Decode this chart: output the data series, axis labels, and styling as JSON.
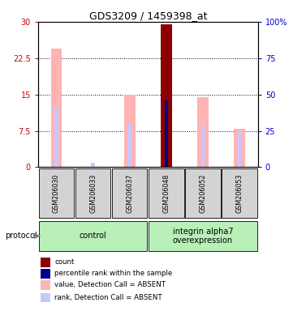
{
  "title": "GDS3209 / 1459398_at",
  "samples": [
    "GSM206030",
    "GSM206033",
    "GSM206037",
    "GSM206048",
    "GSM206052",
    "GSM206053"
  ],
  "ylim_left": [
    0,
    30
  ],
  "ylim_right": [
    0,
    100
  ],
  "yticks_left": [
    0,
    7.5,
    15,
    22.5,
    30
  ],
  "yticks_right": [
    0,
    25,
    50,
    75,
    100
  ],
  "ytick_labels_left": [
    "0",
    "7.5",
    "15",
    "22.5",
    "30"
  ],
  "ytick_labels_right": [
    "0",
    "25",
    "50",
    "75",
    "100%"
  ],
  "gridlines": [
    7.5,
    15.0,
    22.5
  ],
  "bar_data": [
    {
      "sample": "GSM206030",
      "value_bar": 24.5,
      "rank_bar": 41.5,
      "type": "absent"
    },
    {
      "sample": "GSM206033",
      "value_bar": null,
      "rank_bar": 3.0,
      "type": "absent"
    },
    {
      "sample": "GSM206037",
      "value_bar": 15.0,
      "rank_bar": 30.0,
      "type": "absent"
    },
    {
      "sample": "GSM206048",
      "value_bar": 29.5,
      "rank_bar": 46.0,
      "type": "present"
    },
    {
      "sample": "GSM206052",
      "value_bar": 14.5,
      "rank_bar": 28.5,
      "type": "absent"
    },
    {
      "sample": "GSM206053",
      "value_bar": 8.0,
      "rank_bar": 24.5,
      "type": "absent"
    }
  ],
  "groups": [
    {
      "name": "control",
      "start": 0,
      "end": 3,
      "color": "#b8f0b8"
    },
    {
      "name": "integrin alpha7\noverexpression",
      "start": 3,
      "end": 6,
      "color": "#b8f0b8"
    }
  ],
  "colors": {
    "count_bar": "#8b0000",
    "percentile_bar": "#00008b",
    "value_bar_absent": "#ffb3b3",
    "rank_bar_absent": "#c8c8ff",
    "sample_box": "#d3d3d3",
    "tick_left": "#cc0000",
    "tick_right": "#0000cc"
  },
  "legend": [
    {
      "label": "count",
      "color": "#8b0000"
    },
    {
      "label": "percentile rank within the sample",
      "color": "#00008b"
    },
    {
      "label": "value, Detection Call = ABSENT",
      "color": "#ffb3b3"
    },
    {
      "label": "rank, Detection Call = ABSENT",
      "color": "#c8c8ff"
    }
  ]
}
